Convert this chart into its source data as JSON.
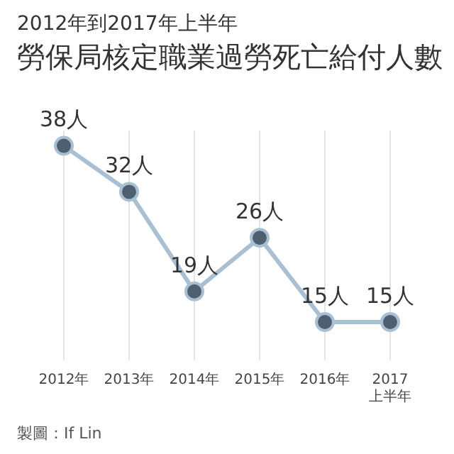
{
  "chart_data": {
    "type": "line",
    "subtitle": "2012年到2017年上半年",
    "title": "勞保局核定職業過勞死亡給付人數",
    "categories": [
      "2012年",
      "2013年",
      "2014年",
      "2015年",
      "2016年",
      "2017\n上半年"
    ],
    "series": [
      {
        "color": "#a9c0d3",
        "values": [
          38,
          32,
          19,
          26,
          15,
          15
        ],
        "value_labels": [
          "38人",
          "32人",
          "19人",
          "26人",
          "15人",
          "15人"
        ]
      }
    ],
    "marker": "circle",
    "grid": "x",
    "legend": false,
    "tick_labels": "x",
    "annotations": [
      "製圖：If Lin"
    ]
  }
}
